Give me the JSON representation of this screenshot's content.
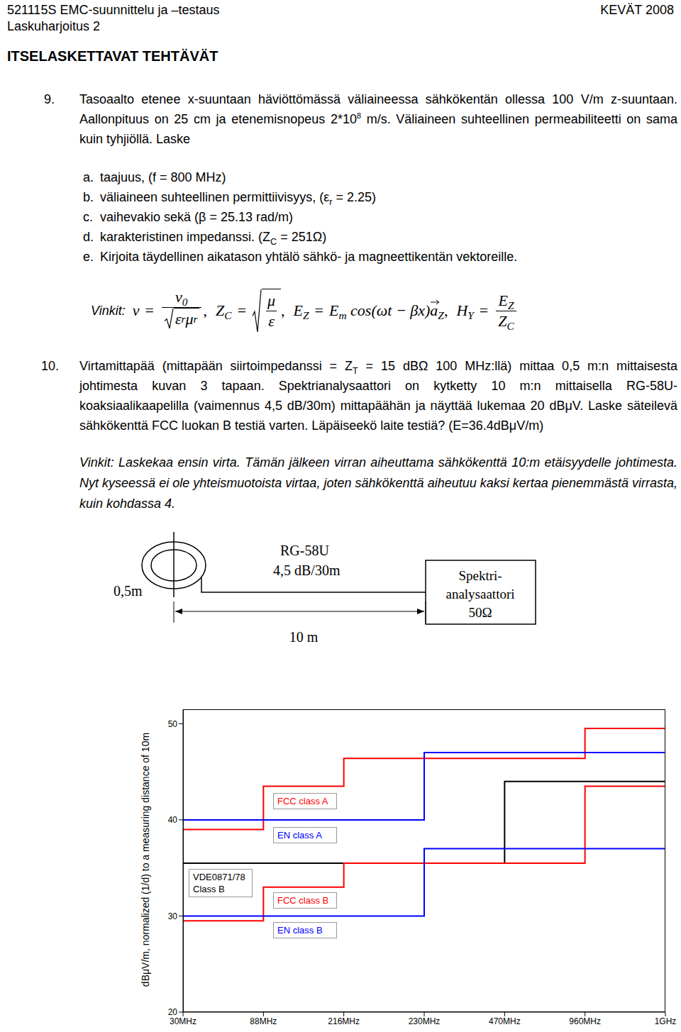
{
  "header": {
    "course": "521115S EMC-suunnittelu ja –testaus",
    "term": "KEVÄT 2008",
    "exercise": "Laskuharjoitus 2",
    "section": "ITSELASKETTAVAT TEHTÄVÄT"
  },
  "problems": [
    {
      "number": "9.",
      "text": [
        {
          "text": "Tasoaalto etenee x-suuntaan häviöttömässä väliaineessa sähkökentän ollessa 100 V/m z-suuntaan. Aallonpituus on 25 cm ja etenemisnopeus 2*10"
        },
        {
          "sup": "8"
        },
        {
          "text": " m/s. Väliaineen suhteellinen permeabiliteetti on sama kuin tyhjiöllä. Laske"
        }
      ],
      "items": [
        {
          "label": "a.",
          "text": [
            {
              "text": "taajuus, (f = 800 MHz)"
            }
          ]
        },
        {
          "label": "b.",
          "text": [
            {
              "text": "väliaineen suhteellinen permittiivisyys, (ε"
            },
            {
              "sub": "r"
            },
            {
              "text": " = 2.25)"
            }
          ]
        },
        {
          "label": "c.",
          "text": [
            {
              "text": "vaihevakio sekä (β = 25.13 rad/m)"
            }
          ]
        },
        {
          "label": "d.",
          "text": [
            {
              "text": "karakteristinen impedanssi. (Z"
            },
            {
              "sub": "C"
            },
            {
              "text": " = 251Ω)"
            }
          ]
        },
        {
          "label": "e.",
          "text": [
            {
              "text": "Kirjoita täydellinen aikatason yhtälö sähkö- ja magneettikentän vektoreille."
            }
          ]
        }
      ],
      "hint": {
        "label": "Vinkit:",
        "separator": ",",
        "formulas": [
          {
            "lhs": [
              {
                "text": "v"
              }
            ],
            "op": "=",
            "kind": "fraction_sqrt_den",
            "num": [
              {
                "text": "v"
              },
              {
                "sub": "0"
              }
            ],
            "den": [
              {
                "text": "ε"
              },
              {
                "sub": "r"
              },
              {
                "text": "μ"
              },
              {
                "sub": "r"
              }
            ]
          },
          {
            "lhs": [
              {
                "text": "Z"
              },
              {
                "sub": "C"
              }
            ],
            "op": "=",
            "kind": "sqrt_fraction",
            "num": [
              {
                "text": "μ"
              }
            ],
            "den": [
              {
                "text": "ε"
              }
            ]
          },
          {
            "lhs": [
              {
                "text": "E"
              },
              {
                "sub": "Z"
              }
            ],
            "op": "=",
            "kind": "inline",
            "rhs": [
              {
                "text": "E"
              },
              {
                "sub": "m"
              },
              {
                "text": " cos(ωt − βx)"
              },
              {
                "vec": "a"
              },
              {
                "sub": "Z"
              }
            ]
          },
          {
            "lhs": [
              {
                "text": "H"
              },
              {
                "sub": "Y"
              }
            ],
            "op": "=",
            "kind": "fraction",
            "num": [
              {
                "text": "E"
              },
              {
                "sub": "Z"
              }
            ],
            "den": [
              {
                "text": "Z"
              },
              {
                "sub": "C"
              }
            ]
          }
        ]
      }
    },
    {
      "number": "10.",
      "text": [
        {
          "text": "Virtamittapää (mittapään siirtoimpedanssi = Z"
        },
        {
          "sub": "T"
        },
        {
          "text": " = 15 dBΩ 100 MHz:llä) mittaa 0,5 m:n mittaisesta johtimesta kuvan 3 tapaan. Spektrianalysaattori on kytketty 10 m:n mittaisella RG-58U-koaksiaalikaapelilla (vaimennus 4,5 dB/30m) mittapäähän ja näyttää lukemaa 20 dBμV. Laske säteilevä sähkökenttä FCC luokan B testiä varten. Läpäiseekö laite testiä? (E=36.4dBμV/m)"
        }
      ],
      "hint": {
        "label": "Vinkit:",
        "text": [
          {
            "text": "Laskekaa ensin virta. Tämän jälkeen virran aiheuttama sähkökenttä 10:m etäisyydelle johtimesta. Nyt kyseessä ei ole yhteismuotoista virtaa, joten sähkökenttä aiheutuu kaksi kertaa pienemmästä virrasta, kuin kohdassa 4."
          }
        ]
      }
    }
  ],
  "diagram": {
    "length_label": "0,5m",
    "cable_name": "RG-58U",
    "cable_loss": "4,5 dB/30m",
    "cable_length": "10 m",
    "analyzer_lines": [
      "Spektri-",
      "analysaattori",
      "50Ω"
    ]
  },
  "chart_data": {
    "type": "line",
    "y_label": "dBμV/m, normalized (1/d) to a measuring distance of 10m",
    "categories": [
      "30MHz",
      "88MHz",
      "216MHz",
      "230MHz",
      "470MHz",
      "960MHz",
      "1GHz"
    ],
    "series": [
      {
        "name": "FCC class A",
        "color": "#ff0000",
        "line_style": "step",
        "values": [
          39,
          43.5,
          46.4,
          46.4,
          46.4,
          49.5,
          49.5
        ]
      },
      {
        "name": "EN class A",
        "color": "#0000ff",
        "line_style": "step",
        "values": [
          40,
          40,
          40,
          47,
          47,
          47,
          47
        ]
      },
      {
        "name": "VDE0871/78 Class B",
        "color": "#000000",
        "line_style": "step",
        "values": [
          35.5,
          35.5,
          35.5,
          35.5,
          44,
          44,
          44
        ]
      },
      {
        "name": "FCC class B",
        "color": "#ff0000",
        "line_style": "step",
        "values": [
          29.5,
          33,
          35.5,
          35.5,
          35.5,
          43.5,
          43.5
        ]
      },
      {
        "name": "EN class B",
        "color": "#0000ff",
        "line_style": "step",
        "values": [
          30,
          30,
          30,
          37,
          37,
          37,
          37
        ]
      }
    ],
    "ylim": [
      20,
      51.5
    ],
    "yticks": [
      20,
      30,
      40,
      50
    ],
    "grid": false
  }
}
